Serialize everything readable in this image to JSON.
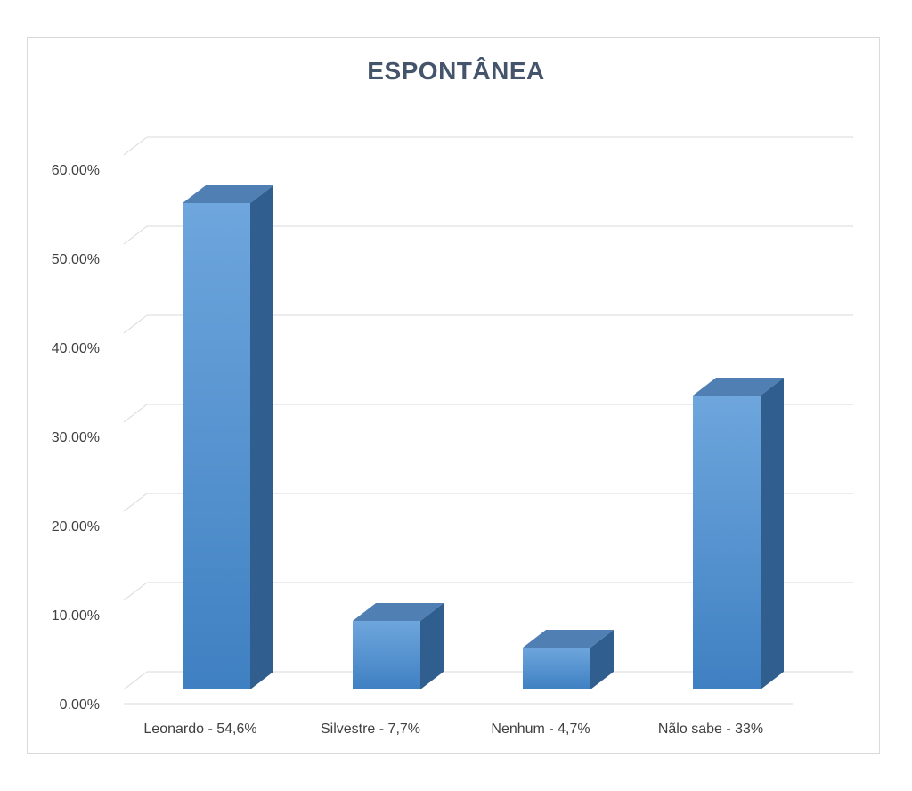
{
  "chart_data": {
    "type": "bar",
    "title": "ESPONTÂNEA",
    "categories": [
      "Leonardo - 54,6%",
      "Silvestre - 7,7%",
      "Nenhum - 4,7%",
      "Nãlo sabe - 33%"
    ],
    "values": [
      54.6,
      7.7,
      4.7,
      33
    ],
    "yticks": [
      "0.00%",
      "10.00%",
      "20.00%",
      "30.00%",
      "40.00%",
      "50.00%",
      "60.00%"
    ],
    "ylim": [
      0,
      60
    ],
    "grid": true,
    "legend": "none",
    "colors": {
      "bar_front_top": "#6ea6dd",
      "bar_front_bottom": "#3f80c2",
      "bar_side": "#2f5e8f",
      "bar_top": "#4f7fb3",
      "grid": "#d9d9d9",
      "title": "#44546a"
    }
  }
}
